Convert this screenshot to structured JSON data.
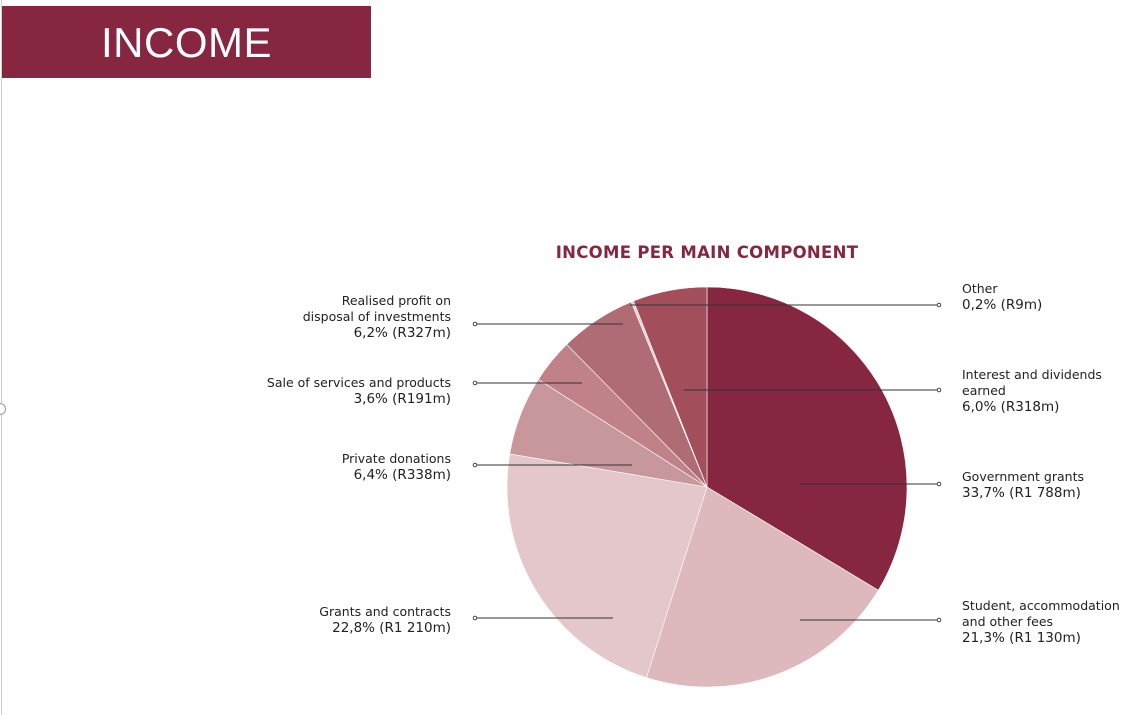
{
  "header": {
    "title": "INCOME"
  },
  "colors": {
    "banner": "#862641",
    "title_text": "#862641",
    "leader_line": "#333333"
  },
  "chart_data": {
    "type": "pie",
    "title": "INCOME PER MAIN COMPONENT",
    "start_angle_deg": 0,
    "direction": "clockwise",
    "slices": [
      {
        "name": "Government grants",
        "label_lines": [
          "Government grants"
        ],
        "value_text": "33,7% (R1 788m)",
        "percent": 33.7,
        "amount_rm": 1788,
        "color": "#862641",
        "side": "right"
      },
      {
        "name": "Student, accommodation and other fees",
        "label_lines": [
          "Student, accommodation",
          "and other fees"
        ],
        "value_text": "21,3% (R1 130m)",
        "percent": 21.3,
        "amount_rm": 1130,
        "color": "#ddb9be",
        "side": "right"
      },
      {
        "name": "Grants and contracts",
        "label_lines": [
          "Grants and contracts"
        ],
        "value_text": "22,8% (R1 210m)",
        "percent": 22.8,
        "amount_rm": 1210,
        "color": "#e3c7ca",
        "side": "left"
      },
      {
        "name": "Private donations",
        "label_lines": [
          "Private donations"
        ],
        "value_text": "6,4% (R338m)",
        "percent": 6.4,
        "amount_rm": 338,
        "color": "#c8979c",
        "side": "left"
      },
      {
        "name": "Sale of services and products",
        "label_lines": [
          "Sale of services and products"
        ],
        "value_text": "3,6% (R191m)",
        "percent": 3.6,
        "amount_rm": 191,
        "color": "#c08288",
        "side": "left"
      },
      {
        "name": "Realised profit on disposal of investments",
        "label_lines": [
          "Realised profit on",
          "disposal of investments"
        ],
        "value_text": "6,2% (R327m)",
        "percent": 6.2,
        "amount_rm": 327,
        "color": "#b06c74",
        "side": "left"
      },
      {
        "name": "Other",
        "label_lines": [
          "Other"
        ],
        "value_text": "0,2% (R9m)",
        "percent": 0.2,
        "amount_rm": 9,
        "color": "#e6cfd2",
        "side": "right"
      },
      {
        "name": "Interest and dividends earned",
        "label_lines": [
          "Interest and dividends",
          "earned"
        ],
        "value_text": "6,0% (R318m)",
        "percent": 6.0,
        "amount_rm": 318,
        "color": "#a34e5b",
        "side": "right"
      }
    ]
  }
}
